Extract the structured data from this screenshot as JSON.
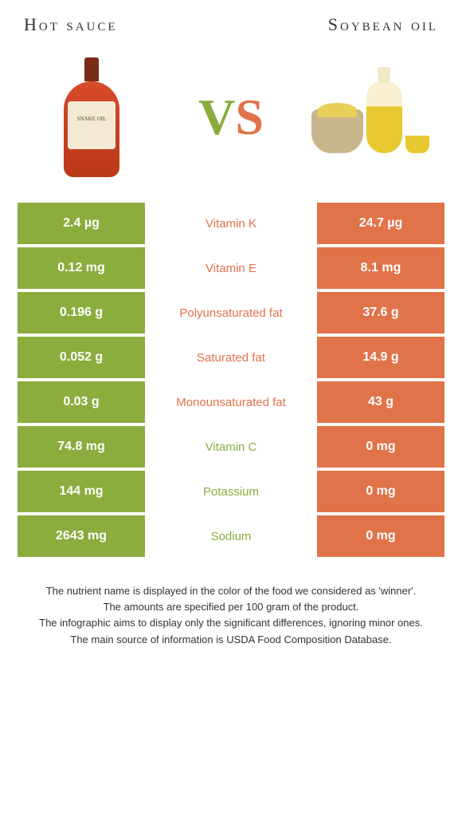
{
  "colors": {
    "left_bg": "#8aad3d",
    "right_bg": "#e0734a",
    "left_text": "#8aad3d",
    "right_text": "#e0734a",
    "cell_text": "#ffffff",
    "footer_text": "#333333",
    "header_text": "#333333"
  },
  "header": {
    "left_title": "Hot sauce",
    "right_title": "Soybean oil"
  },
  "left_product_label": "SNAKE OIL",
  "vs": {
    "v": "V",
    "s": "S"
  },
  "rows": [
    {
      "left": "2.4 µg",
      "mid": "Vitamin K",
      "right": "24.7 µg",
      "winner": "right"
    },
    {
      "left": "0.12 mg",
      "mid": "Vitamin E",
      "right": "8.1 mg",
      "winner": "right"
    },
    {
      "left": "0.196 g",
      "mid": "Polyunsaturated fat",
      "right": "37.6 g",
      "winner": "right"
    },
    {
      "left": "0.052 g",
      "mid": "Saturated fat",
      "right": "14.9 g",
      "winner": "right"
    },
    {
      "left": "0.03 g",
      "mid": "Monounsaturated fat",
      "right": "43 g",
      "winner": "right"
    },
    {
      "left": "74.8 mg",
      "mid": "Vitamin C",
      "right": "0 mg",
      "winner": "left"
    },
    {
      "left": "144 mg",
      "mid": "Potassium",
      "right": "0 mg",
      "winner": "left"
    },
    {
      "left": "2643 mg",
      "mid": "Sodium",
      "right": "0 mg",
      "winner": "left"
    }
  ],
  "footer": {
    "line1": "The nutrient name is displayed in the color of the food we considered as 'winner'.",
    "line2": "The amounts are specified per 100 gram of the product.",
    "line3": "The infographic aims to display only the significant differences, ignoring minor ones.",
    "line4": "The main source of information is USDA Food Composition Database."
  }
}
